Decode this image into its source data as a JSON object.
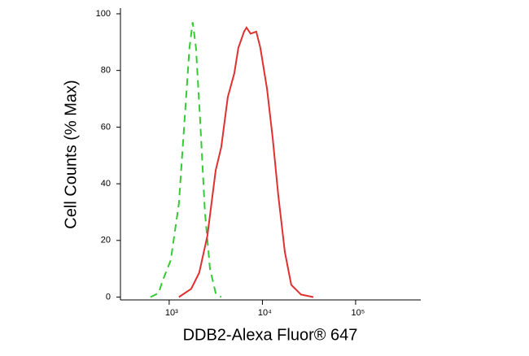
{
  "chart_data": {
    "type": "line",
    "xlabel": "DDB2-Alexa Fluor® 647",
    "ylabel": "Cell Counts (% Max)",
    "xscale": "log",
    "xlim": [
      300,
      500000
    ],
    "ylim": [
      -1,
      102
    ],
    "xticks": [
      {
        "value": 1000,
        "label": "10³"
      },
      {
        "value": 10000,
        "label": "10⁴"
      },
      {
        "value": 100000,
        "label": "10⁵"
      }
    ],
    "yticks": [
      0,
      20,
      40,
      60,
      80,
      100
    ],
    "series": [
      {
        "color": "#33cc33",
        "dash": true,
        "x": [
          630,
          770,
          850,
          1040,
          1270,
          1500,
          1650,
          1790,
          1940,
          2150,
          2420,
          2740,
          3150,
          3620
        ],
        "values": [
          0,
          1.4,
          5.8,
          13,
          33,
          68,
          88,
          97,
          88,
          62,
          30,
          10,
          1.4,
          0
        ]
      },
      {
        "color": "#e03030",
        "dash": false,
        "x": [
          1270,
          1720,
          2100,
          2570,
          3150,
          3620,
          4250,
          5000,
          5520,
          6360,
          6760,
          7470,
          8600,
          9500,
          11200,
          12900,
          14800,
          17400,
          20400,
          26000,
          35200
        ],
        "values": [
          0,
          2.9,
          8.6,
          21.6,
          44.7,
          53,
          70.6,
          79,
          88,
          93.7,
          95.1,
          93,
          93.7,
          88,
          73.5,
          56,
          36,
          15.9,
          4.3,
          0.9,
          0
        ]
      }
    ]
  }
}
